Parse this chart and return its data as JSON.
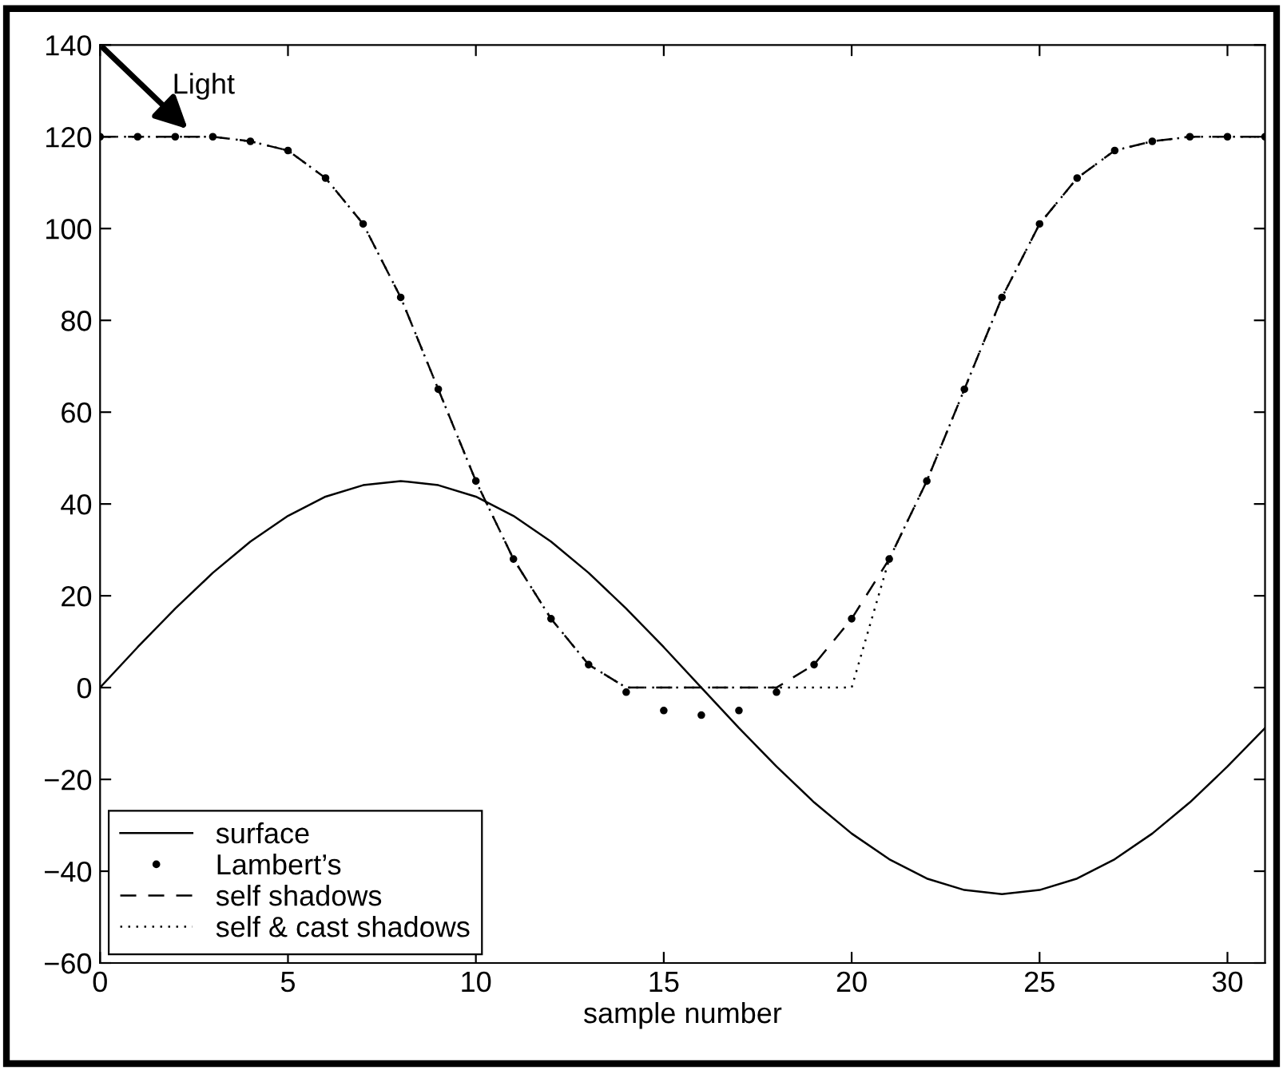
{
  "chart_data": {
    "type": "line",
    "xlabel": "sample number",
    "x": [
      0,
      1,
      2,
      3,
      4,
      5,
      6,
      7,
      8,
      9,
      10,
      11,
      12,
      13,
      14,
      15,
      16,
      17,
      18,
      19,
      20,
      21,
      22,
      23,
      24,
      25,
      26,
      27,
      28,
      29,
      30,
      31
    ],
    "series": [
      {
        "name": "surface",
        "color": "#000000",
        "line_style": "solid",
        "values": [
          0,
          8.8,
          17.2,
          25,
          31.8,
          37.4,
          41.6,
          44.1,
          45,
          44.1,
          41.6,
          37.4,
          31.8,
          25,
          17.2,
          8.8,
          0,
          -8.8,
          -17.2,
          -25,
          -31.8,
          -37.4,
          -41.6,
          -44.1,
          -45,
          -44.1,
          -41.6,
          -37.4,
          -31.8,
          -25,
          -17.2,
          -8.8
        ]
      },
      {
        "name": "Lambert’s",
        "color": "#000000",
        "type": "scatter",
        "marker": "circle",
        "values": [
          120,
          120,
          120,
          120,
          119,
          117,
          111,
          101,
          85,
          65,
          45,
          28,
          15,
          5,
          -1,
          -5,
          -6,
          -5,
          -1,
          5,
          15,
          28,
          45,
          65,
          85,
          101,
          111,
          117,
          119,
          120,
          120,
          120
        ]
      },
      {
        "name": "self shadows",
        "color": "#000000",
        "line_style": "dashed",
        "values": [
          120,
          120,
          120,
          120,
          119,
          117,
          111,
          101,
          85,
          65,
          45,
          28,
          15,
          5,
          0,
          0,
          0,
          0,
          0,
          5,
          15,
          28,
          45,
          65,
          85,
          101,
          111,
          117,
          119,
          120,
          120,
          120
        ]
      },
      {
        "name": "self & cast shadows",
        "color": "#000000",
        "line_style": "dotted",
        "values": [
          120,
          120,
          120,
          120,
          119,
          117,
          111,
          101,
          85,
          65,
          45,
          28,
          15,
          5,
          0,
          0,
          0,
          0,
          0,
          0,
          0,
          28,
          45,
          65,
          85,
          101,
          111,
          117,
          119,
          120,
          120,
          120
        ]
      }
    ],
    "xlim": [
      0,
      31
    ],
    "ylim": [
      -60,
      140
    ],
    "xticks": [
      0,
      5,
      10,
      15,
      20,
      25,
      30
    ],
    "yticks": [
      -60,
      -40,
      -20,
      0,
      20,
      40,
      60,
      80,
      100,
      120,
      140
    ],
    "grid": false,
    "legend": "bottom left",
    "annotations": [
      "Light"
    ]
  }
}
